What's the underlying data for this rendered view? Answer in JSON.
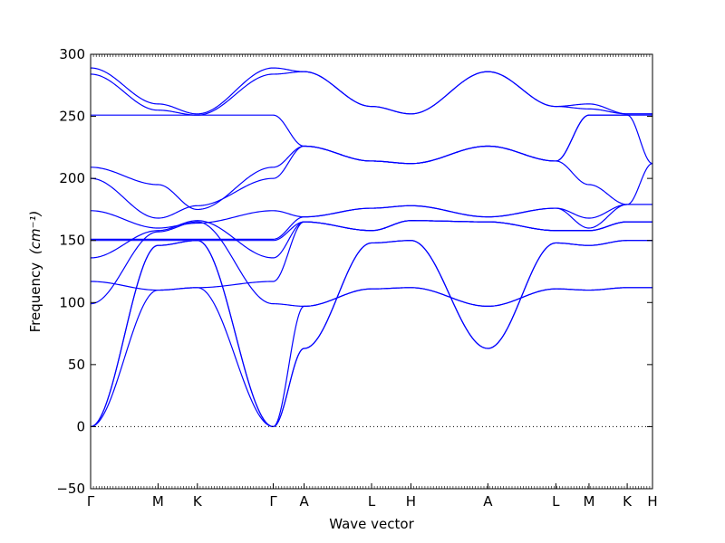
{
  "chart_data": {
    "type": "line",
    "title": "",
    "xlabel": "Wave vector",
    "ylabel": "Frequency",
    "ylabel_unit": "(cm⁻¹)",
    "ylim": [
      -50,
      300
    ],
    "yticks": [
      -50,
      0,
      50,
      100,
      150,
      200,
      250,
      300
    ],
    "xlim": [
      0,
      10
    ],
    "grid": false,
    "legend": "none",
    "series_color": "#0000ff",
    "zero_line": {
      "y": 0,
      "style": "dotted",
      "color": "#000000"
    },
    "high_symmetry_points": [
      {
        "label": "Γ",
        "x": 0.0
      },
      {
        "label": "M",
        "x": 1.2
      },
      {
        "label": "K",
        "x": 1.9
      },
      {
        "label": "Γ",
        "x": 3.25
      },
      {
        "label": "A",
        "x": 3.8
      },
      {
        "label": "L",
        "x": 5.0
      },
      {
        "label": "H",
        "x": 5.7
      },
      {
        "label": "A",
        "x": 7.07
      },
      {
        "label": "L",
        "x": 8.28
      },
      {
        "label": "M",
        "x": 8.87
      },
      {
        "label": "K",
        "x": 9.55
      },
      {
        "label": "H",
        "x": 10.0
      }
    ],
    "bands": [
      {
        "x": [
          0,
          1.2,
          1.9,
          3.25,
          3.8,
          5.0,
          5.7,
          7.07,
          8.28,
          8.87,
          9.55,
          10.0
        ],
        "y": [
          0,
          146,
          150,
          0,
          63,
          148,
          150,
          63,
          148,
          146,
          150,
          150
        ]
      },
      {
        "x": [
          0,
          1.2,
          1.9,
          3.25,
          3.8,
          5.0,
          5.7,
          7.07,
          8.28,
          8.87,
          9.55,
          10.0
        ],
        "y": [
          0,
          146,
          150,
          0,
          63,
          148,
          150,
          63,
          148,
          146,
          150,
          150
        ]
      },
      {
        "x": [
          0,
          1.2,
          1.9,
          3.25,
          3.8,
          5.0,
          5.7,
          7.07,
          8.28,
          8.87,
          9.55,
          10.0
        ],
        "y": [
          0,
          110,
          112,
          0,
          97,
          111,
          112,
          97,
          111,
          110,
          112,
          112
        ]
      },
      {
        "x": [
          0,
          1.2,
          1.9,
          3.25,
          3.8,
          5.0,
          5.7,
          7.07,
          8.28,
          8.87,
          9.55,
          10.0
        ],
        "y": [
          99,
          157,
          165,
          99,
          97,
          111,
          112,
          97,
          111,
          110,
          112,
          112
        ]
      },
      {
        "x": [
          0,
          1.2,
          1.9,
          3.25,
          3.8,
          5.0,
          5.7,
          7.07,
          8.28,
          8.87,
          9.55,
          10.0
        ],
        "y": [
          117,
          110,
          112,
          117,
          165,
          158,
          166,
          165,
          158,
          158,
          165,
          165
        ]
      },
      {
        "x": [
          0,
          1.2,
          1.9,
          3.25,
          3.8,
          5.0,
          5.7,
          7.07,
          8.28,
          8.87,
          9.55,
          10.0
        ],
        "y": [
          136,
          158,
          166,
          136,
          165,
          158,
          166,
          165,
          158,
          158,
          165,
          165
        ]
      },
      {
        "x": [
          0,
          1.2,
          1.9,
          3.25,
          3.8,
          5.0,
          5.7,
          7.07,
          8.28,
          8.87,
          9.55,
          10.0
        ],
        "y": [
          150,
          150,
          150,
          150,
          165,
          158,
          166,
          165,
          158,
          158,
          165,
          165
        ]
      },
      {
        "x": [
          0,
          1.2,
          1.9,
          3.25,
          3.8,
          5.0,
          5.7,
          7.07,
          8.28,
          8.87,
          9.55,
          10.0
        ],
        "y": [
          151,
          151,
          151,
          151,
          169,
          176,
          178,
          169,
          176,
          160,
          179,
          179
        ]
      },
      {
        "x": [
          0,
          1.2,
          1.9,
          3.25,
          3.8,
          5.0,
          5.7,
          7.07,
          8.28,
          8.87,
          9.55,
          10.0
        ],
        "y": [
          174,
          160,
          164,
          174,
          169,
          176,
          178,
          169,
          176,
          168,
          179,
          179
        ]
      },
      {
        "x": [
          0,
          1.2,
          1.9,
          3.25,
          3.8,
          5.0,
          5.7,
          7.07,
          8.28,
          8.87,
          9.55,
          10.0
        ],
        "y": [
          200,
          168,
          178,
          200,
          226,
          214,
          212,
          226,
          214,
          195,
          179,
          212
        ]
      },
      {
        "x": [
          0,
          1.2,
          1.9,
          3.25,
          3.8,
          5.0,
          5.7,
          7.07,
          8.28,
          8.87,
          9.55,
          10.0
        ],
        "y": [
          209,
          195,
          175,
          209,
          226,
          214,
          212,
          226,
          214,
          251,
          251,
          212
        ]
      },
      {
        "x": [
          0,
          1.2,
          1.9,
          3.25,
          3.8,
          5.0,
          5.7,
          7.07,
          8.28,
          8.87,
          9.55,
          10.0
        ],
        "y": [
          251,
          251,
          251,
          251,
          226,
          214,
          212,
          226,
          214,
          251,
          251,
          251
        ]
      },
      {
        "x": [
          0,
          1.2,
          1.9,
          3.25,
          3.8,
          5.0,
          5.7,
          7.07,
          8.28,
          8.87,
          9.55,
          10.0
        ],
        "y": [
          284,
          255,
          251,
          284,
          286,
          258,
          252,
          286,
          258,
          256,
          252,
          252
        ]
      },
      {
        "x": [
          0,
          1.2,
          1.9,
          3.25,
          3.8,
          5.0,
          5.7,
          7.07,
          8.28,
          8.87,
          9.55,
          10.0
        ],
        "y": [
          289,
          260,
          252,
          289,
          286,
          258,
          252,
          286,
          258,
          260,
          252,
          252
        ]
      }
    ]
  }
}
